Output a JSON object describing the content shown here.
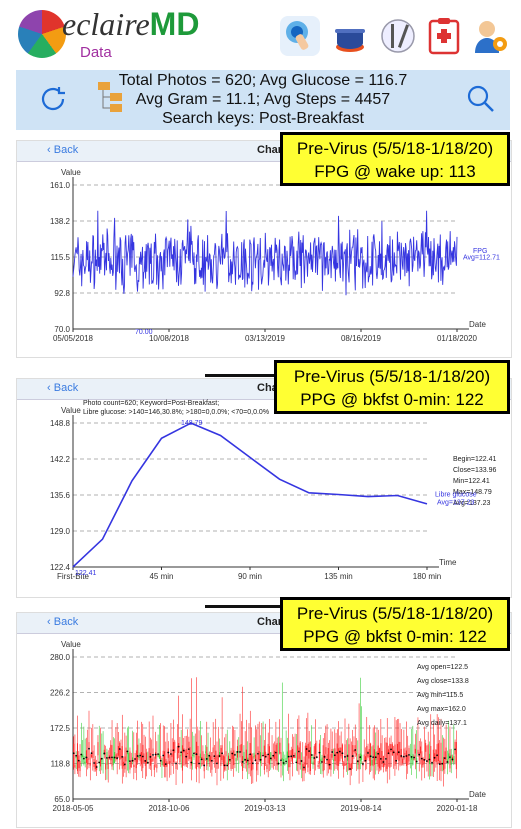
{
  "app": {
    "name_main": "eclaire",
    "name_md": "MD",
    "name_sub": "Data"
  },
  "toolbar_icons": [
    "touch-icon",
    "cooking-pot-icon",
    "utensils-icon",
    "medical-clipboard-icon",
    "doctor-gear-icon"
  ],
  "summary": {
    "line1": "Total Photos = 620; Avg Glucose = 116.7",
    "line2": "Avg Gram = 11.1; Avg Steps = 4457",
    "line3": "Search keys:   Post-Breakfast"
  },
  "panels": [
    {
      "back": "Back",
      "title": "Chart"
    },
    {
      "back": "Back",
      "title": "Char"
    },
    {
      "back": "Back",
      "title": "Chart"
    }
  ],
  "callouts": [
    {
      "line1": "Pre-Virus (5/5/18-1/18/20)",
      "line2": "FPG @ wake up: 113"
    },
    {
      "line1": "Pre-Virus (5/5/18-1/18/20)",
      "line2": "PPG @ bkfst 0-min: 122"
    },
    {
      "line1": "Pre-Virus (5/5/18-1/18/20)",
      "line2": "PPG @ bkfst 0-min: 122"
    }
  ],
  "chart_data": [
    {
      "type": "line",
      "ylabel": "Value",
      "xlabel": "Date",
      "ylim": [
        70.0,
        161.0
      ],
      "y_ticks": [
        "161.0",
        "138.2",
        "115.5",
        "92.8",
        "70.0"
      ],
      "x_ticks": [
        "05/05/2018",
        "10/08/2018",
        "03/13/2019",
        "08/16/2019",
        "01/18/2020"
      ],
      "series": [
        {
          "name": "FPG",
          "avg_label": "Avg=112.71",
          "color": "#3535e0",
          "min_label": "70.00"
        }
      ]
    },
    {
      "type": "line",
      "ylabel": "Value",
      "xlabel": "Time",
      "ylim": [
        122.4,
        148.8
      ],
      "y_ticks": [
        "148.8",
        "142.2",
        "135.6",
        "129.0",
        "122.4"
      ],
      "x_ticks": [
        "First-Bite",
        "45 min",
        "90 min",
        "135 min",
        "180 min"
      ],
      "info_lines": [
        "Photo count=620; Keyword=Post-Breakfast;",
        "Libre glucose: >140=146,30.8%; >180=0,0.0%; <70=0,0.0%"
      ],
      "series": [
        {
          "name": "Libre glucose",
          "avg_label": "Avg=137.23",
          "color": "#3535e0",
          "x": [
            0,
            15,
            30,
            45,
            60,
            75,
            90,
            105,
            120,
            135,
            150,
            165,
            180
          ],
          "values": [
            122.41,
            127.5,
            138.2,
            146.0,
            148.79,
            146.5,
            142.5,
            138.5,
            136.0,
            135.7,
            135.3,
            135.5,
            133.96
          ]
        }
      ],
      "stats": [
        "Begin=122.41",
        "Close=133.96",
        "Min=122.41",
        "Max=148.79",
        "Avg=137.23"
      ],
      "point_labels": {
        "begin": "122.41",
        "peak": "148.79"
      }
    },
    {
      "type": "candlestick",
      "ylabel": "Value",
      "xlabel": "Date",
      "ylim": [
        65.0,
        280.0
      ],
      "y_ticks": [
        "280.0",
        "226.2",
        "172.5",
        "118.8",
        "65.0"
      ],
      "x_ticks": [
        "2018-05-05",
        "2018-10-06",
        "2019-03-13",
        "2019-08-14",
        "2020-01-18"
      ],
      "stats": [
        "Avg open=122.5",
        "Avg close=133.8",
        "Avg min=115.5",
        "Avg max=162.0",
        "Avg daily=137.1"
      ],
      "colors": {
        "up": "#ff2a2a",
        "down": "#3ecf3e",
        "dot": "#000000"
      }
    }
  ]
}
